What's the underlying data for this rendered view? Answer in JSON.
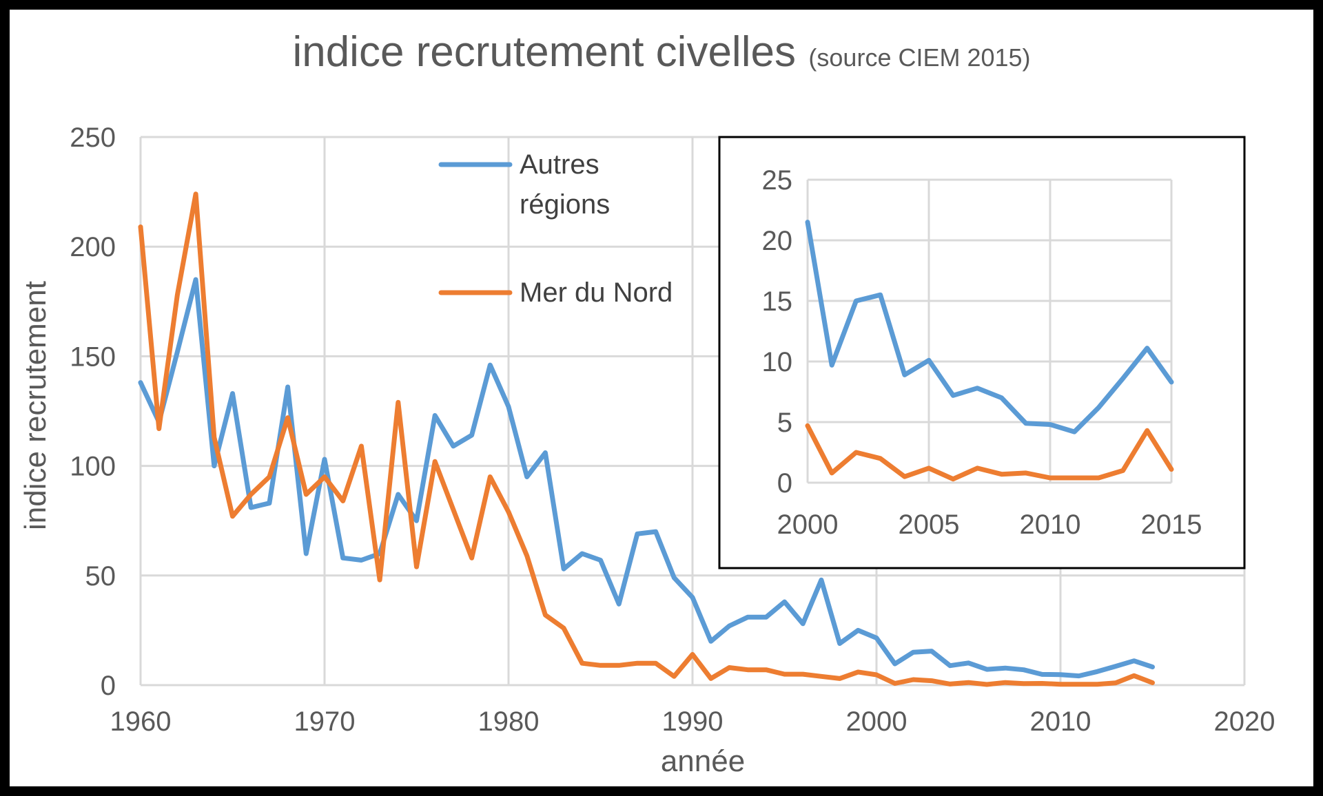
{
  "chart_data": [
    {
      "type": "line",
      "title": "indice recrutement civelles",
      "subtitle": "(source CIEM 2015)",
      "xlabel": "année",
      "ylabel": "indice recrutement",
      "xlim": [
        1960,
        2020
      ],
      "ylim": [
        0,
        250
      ],
      "xticks": [
        1960,
        1970,
        1980,
        1990,
        2000,
        2010,
        2020
      ],
      "yticks": [
        0,
        50,
        100,
        150,
        200,
        250
      ],
      "grid": true,
      "legend_position": "top-center",
      "series": [
        {
          "name": "Autres régions",
          "color": "#5b9bd5",
          "x": [
            1960,
            1961,
            1962,
            1963,
            1964,
            1965,
            1966,
            1967,
            1968,
            1969,
            1970,
            1971,
            1972,
            1973,
            1974,
            1975,
            1976,
            1977,
            1978,
            1979,
            1980,
            1981,
            1982,
            1983,
            1984,
            1985,
            1986,
            1987,
            1988,
            1989,
            1990,
            1991,
            1992,
            1993,
            1994,
            1995,
            1996,
            1997,
            1998,
            1999,
            2000,
            2001,
            2002,
            2003,
            2004,
            2005,
            2006,
            2007,
            2008,
            2009,
            2010,
            2011,
            2012,
            2013,
            2014,
            2015
          ],
          "values": [
            138,
            120,
            152,
            185,
            100,
            133,
            81,
            83,
            136,
            60,
            103,
            58,
            57,
            60,
            87,
            75,
            123,
            109,
            114,
            146,
            127,
            95,
            106,
            53,
            60,
            57,
            37,
            69,
            70,
            49,
            40,
            20,
            27,
            31,
            31,
            38,
            28,
            48,
            19,
            25,
            21.5,
            9.7,
            15,
            15.5,
            8.9,
            10.1,
            7.2,
            7.8,
            7,
            4.9,
            4.8,
            4.2,
            6.2,
            8.6,
            11.1,
            8.3
          ]
        },
        {
          "name": "Mer du Nord",
          "color": "#ed7d31",
          "x": [
            1960,
            1961,
            1962,
            1963,
            1964,
            1965,
            1966,
            1967,
            1968,
            1969,
            1970,
            1971,
            1972,
            1973,
            1974,
            1975,
            1976,
            1977,
            1978,
            1979,
            1980,
            1981,
            1982,
            1983,
            1984,
            1985,
            1986,
            1987,
            1988,
            1989,
            1990,
            1991,
            1992,
            1993,
            1994,
            1995,
            1996,
            1997,
            1998,
            1999,
            2000,
            2001,
            2002,
            2003,
            2004,
            2005,
            2006,
            2007,
            2008,
            2009,
            2010,
            2011,
            2012,
            2013,
            2014,
            2015
          ],
          "values": [
            209,
            117,
            178,
            224,
            113,
            77,
            87,
            95,
            122,
            87,
            95,
            84,
            109,
            48,
            129,
            54,
            102,
            80,
            58,
            95,
            79,
            59,
            32,
            26,
            10,
            9,
            9,
            10,
            10,
            4,
            14,
            3,
            8,
            7,
            7,
            5,
            5,
            4,
            3,
            6,
            4.7,
            0.8,
            2.5,
            2,
            0.5,
            1.2,
            0.3,
            1.2,
            0.7,
            0.8,
            0.4,
            0.4,
            0.4,
            1,
            4.3,
            1.1
          ]
        }
      ]
    },
    {
      "type": "line",
      "title": "",
      "xlim": [
        2000,
        2015
      ],
      "ylim": [
        0,
        25
      ],
      "xticks": [
        2000,
        2005,
        2010,
        2015
      ],
      "yticks": [
        0,
        5,
        10,
        15,
        20,
        25
      ],
      "grid": true,
      "series": [
        {
          "color": "#5b9bd5",
          "x": [
            2000,
            2001,
            2002,
            2003,
            2004,
            2005,
            2006,
            2007,
            2008,
            2009,
            2010,
            2011,
            2012,
            2013,
            2014,
            2015
          ],
          "values": [
            21.5,
            9.7,
            15,
            15.5,
            8.9,
            10.1,
            7.2,
            7.8,
            7,
            4.9,
            4.8,
            4.2,
            6.2,
            8.6,
            11.1,
            8.3
          ]
        },
        {
          "color": "#ed7d31",
          "x": [
            2000,
            2001,
            2002,
            2003,
            2004,
            2005,
            2006,
            2007,
            2008,
            2009,
            2010,
            2011,
            2012,
            2013,
            2014,
            2015
          ],
          "values": [
            4.7,
            0.8,
            2.5,
            2,
            0.5,
            1.2,
            0.3,
            1.2,
            0.7,
            0.8,
            0.4,
            0.4,
            0.4,
            1,
            4.3,
            1.1
          ]
        }
      ]
    }
  ]
}
